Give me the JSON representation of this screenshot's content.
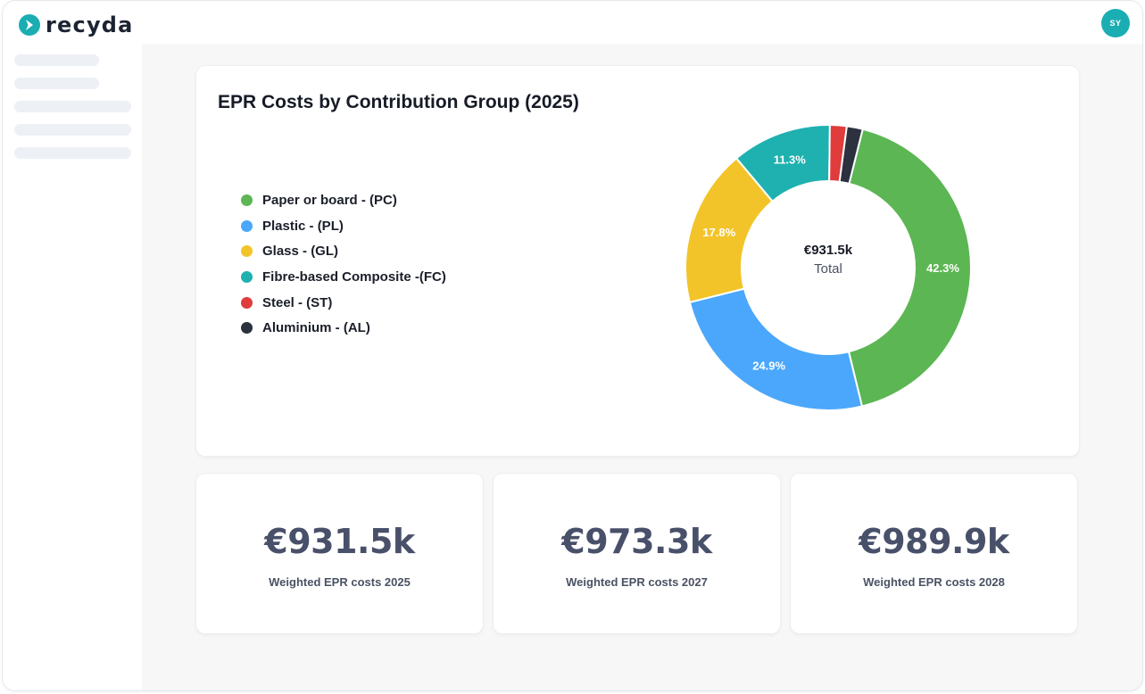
{
  "app": {
    "brand": "recyda",
    "user_initials": "SY"
  },
  "colors": {
    "brand_teal": "#1aaeb3",
    "paper": "#5cb653",
    "plastic": "#4aa7fb",
    "glass": "#f2c42a",
    "fibre": "#1fb1b0",
    "steel": "#e03c3c",
    "aluminium": "#2c3140"
  },
  "chart_card": {
    "title": "EPR Costs by Contribution Group (2025)",
    "center_value": "€931.5k",
    "center_label": "Total"
  },
  "legend": [
    {
      "label": "Paper or board - (PC)",
      "color": "#5cb653"
    },
    {
      "label": "Plastic - (PL)",
      "color": "#4aa7fb"
    },
    {
      "label": "Glass - (GL)",
      "color": "#f2c42a"
    },
    {
      "label": "Fibre-based Composite -(FC)",
      "color": "#1fb1b0"
    },
    {
      "label": "Steel - (ST)",
      "color": "#e03c3c"
    },
    {
      "label": "Aluminium - (AL)",
      "color": "#2c3140"
    }
  ],
  "chart_data": {
    "type": "pie",
    "categories": [
      "Paper or board - (PC)",
      "Plastic - (PL)",
      "Glass - (GL)",
      "Fibre-based Composite -(FC)",
      "Steel - (ST)",
      "Aluminium - (AL)"
    ],
    "values": [
      42.3,
      24.9,
      17.8,
      11.3,
      1.9,
      1.8
    ],
    "data_labels": [
      "42.3%",
      "24.9%",
      "17.8%",
      "11.3%",
      "",
      ""
    ],
    "colors": [
      "#5cb653",
      "#4aa7fb",
      "#f2c42a",
      "#1fb1b0",
      "#e03c3c",
      "#2c3140"
    ],
    "title": "EPR Costs by Contribution Group (2025)",
    "legend": "left",
    "hole": true
  },
  "stats": [
    {
      "value": "€931.5k",
      "label": "Weighted EPR costs 2025"
    },
    {
      "value": "€973.3k",
      "label": "Weighted EPR costs 2027"
    },
    {
      "value": "€989.9k",
      "label": "Weighted EPR costs 2028"
    }
  ]
}
